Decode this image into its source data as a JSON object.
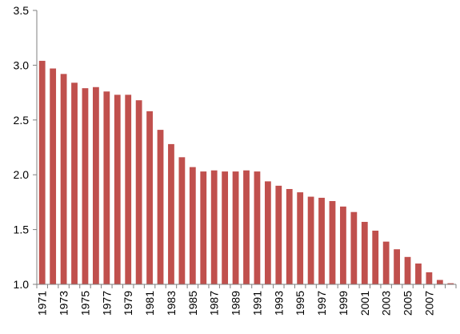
{
  "chart_data": {
    "type": "bar",
    "title": "",
    "xlabel": "",
    "ylabel": "",
    "ylim": [
      1.0,
      3.5
    ],
    "yticks": [
      "1.0",
      "1.5",
      "2.0",
      "2.5",
      "3.0",
      "3.5"
    ],
    "ytick_values": [
      1.0,
      1.5,
      2.0,
      2.5,
      3.0,
      3.5
    ],
    "categories": [
      "1971",
      "1972",
      "1973",
      "1974",
      "1975",
      "1976",
      "1977",
      "1978",
      "1979",
      "1980",
      "1981",
      "1982",
      "1983",
      "1984",
      "1985",
      "1986",
      "1987",
      "1988",
      "1989",
      "1990",
      "1991",
      "1992",
      "1993",
      "1994",
      "1995",
      "1996",
      "1997",
      "1998",
      "1999",
      "2000",
      "2001",
      "2002",
      "2003",
      "2004",
      "2005",
      "2006",
      "2007",
      "2008",
      "2009"
    ],
    "xtick_labels": [
      "1971",
      "1973",
      "1975",
      "1977",
      "1979",
      "1981",
      "1983",
      "1985",
      "1987",
      "1989",
      "1991",
      "1993",
      "1995",
      "1997",
      "1999",
      "2001",
      "2003",
      "2005",
      "2007"
    ],
    "values": [
      3.04,
      2.97,
      2.92,
      2.84,
      2.79,
      2.8,
      2.76,
      2.73,
      2.73,
      2.68,
      2.58,
      2.41,
      2.28,
      2.16,
      2.07,
      2.03,
      2.04,
      2.03,
      2.03,
      2.04,
      2.03,
      1.94,
      1.9,
      1.87,
      1.84,
      1.8,
      1.79,
      1.76,
      1.71,
      1.66,
      1.57,
      1.49,
      1.39,
      1.32,
      1.25,
      1.19,
      1.11,
      1.04,
      1.01
    ],
    "bar_color": "#c0504d",
    "axis_color": "#7f7f7f",
    "grid": false,
    "legend": "none"
  }
}
